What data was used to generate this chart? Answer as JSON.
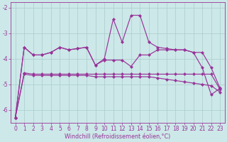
{
  "color": "#993399",
  "bg_color": "#cce8e8",
  "grid_color": "#aacccc",
  "xlabel": "Windchill (Refroidissement éolien,°C)",
  "ylim": [
    -6.5,
    -1.8
  ],
  "xlim": [
    -0.5,
    23.5
  ],
  "yticks": [
    -6,
    -5,
    -4,
    -3,
    -2
  ],
  "ytick_labels": [
    "-6",
    "-5",
    "-4",
    "-3",
    "-2"
  ],
  "xticks": [
    0,
    1,
    2,
    3,
    4,
    5,
    6,
    7,
    8,
    9,
    10,
    11,
    12,
    13,
    14,
    15,
    16,
    17,
    18,
    19,
    20,
    21,
    22,
    23
  ],
  "line_spiky": {
    "x": [
      0,
      1,
      2,
      3,
      4,
      5,
      6,
      7,
      8,
      9,
      10,
      11,
      12,
      13,
      14,
      15,
      16,
      17,
      18,
      19,
      20,
      21,
      22,
      23
    ],
    "y": [
      -6.3,
      -3.55,
      -3.85,
      -3.85,
      -3.75,
      -3.55,
      -3.65,
      -3.6,
      -3.55,
      -4.25,
      -4.0,
      -2.45,
      -3.35,
      -2.3,
      -2.3,
      -3.35,
      -3.55,
      -3.6,
      -3.65,
      -3.65,
      -3.75,
      -4.35,
      -5.4,
      -5.15
    ]
  },
  "line_upper": {
    "x": [
      0,
      1,
      2,
      3,
      4,
      5,
      6,
      7,
      8,
      9,
      10,
      11,
      12,
      13,
      14,
      15,
      16,
      17,
      18,
      19,
      20,
      21,
      22,
      23
    ],
    "y": [
      -6.3,
      -3.55,
      -3.85,
      -3.85,
      -3.75,
      -3.55,
      -3.65,
      -3.6,
      -3.55,
      -4.25,
      -4.05,
      -4.05,
      -4.05,
      -4.3,
      -3.85,
      -3.85,
      -3.65,
      -3.65,
      -3.65,
      -3.65,
      -3.75,
      -3.75,
      -4.35,
      -5.15
    ]
  },
  "line_lower1": {
    "x": [
      0,
      1,
      2,
      3,
      4,
      5,
      6,
      7,
      8,
      9,
      10,
      11,
      12,
      13,
      14,
      15,
      16,
      17,
      18,
      19,
      20,
      21,
      22,
      23
    ],
    "y": [
      -6.3,
      -4.55,
      -4.6,
      -4.6,
      -4.6,
      -4.6,
      -4.6,
      -4.6,
      -4.6,
      -4.6,
      -4.6,
      -4.6,
      -4.6,
      -4.6,
      -4.6,
      -4.6,
      -4.6,
      -4.6,
      -4.6,
      -4.6,
      -4.6,
      -4.6,
      -4.6,
      -5.2
    ]
  },
  "line_lower2": {
    "x": [
      0,
      1,
      2,
      3,
      4,
      5,
      6,
      7,
      8,
      9,
      10,
      11,
      12,
      13,
      14,
      15,
      16,
      17,
      18,
      19,
      20,
      21,
      22,
      23
    ],
    "y": [
      -6.3,
      -4.6,
      -4.65,
      -4.65,
      -4.65,
      -4.65,
      -4.65,
      -4.65,
      -4.65,
      -4.7,
      -4.7,
      -4.7,
      -4.7,
      -4.7,
      -4.7,
      -4.7,
      -4.75,
      -4.8,
      -4.85,
      -4.9,
      -4.95,
      -5.0,
      -5.05,
      -5.3
    ]
  },
  "markersize": 2.2,
  "linewidth": 0.85,
  "xlabel_fontsize": 5.8,
  "tick_fontsize": 5.5
}
